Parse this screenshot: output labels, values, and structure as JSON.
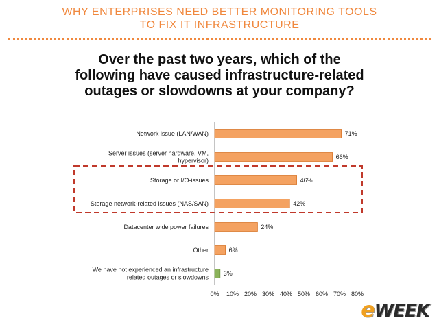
{
  "header": {
    "line1": "WHY ENTERPRISES NEED BETTER MONITORING TOOLS",
    "line2": "TO FIX IT INFRASTRUCTURE"
  },
  "question": {
    "line1": "Over the past two years, which of the",
    "line2": "following have caused infrastructure-related",
    "line3": "outages or slowdowns at your company?"
  },
  "logo": {
    "e": "e",
    "rest": "WEEK"
  },
  "colors": {
    "bar": "#f4a261",
    "bar_stroke": "#d9782d",
    "green_bar": "#8bb35a",
    "highlight": "#c0392b",
    "accent": "#f0883e"
  },
  "chart_data": {
    "type": "bar",
    "orientation": "horizontal",
    "categories": [
      [
        "Network issue (LAN/WAN)"
      ],
      [
        "Server issues (server hardware, VM,",
        "hypervisor)"
      ],
      [
        "Storage or I/O-issues"
      ],
      [
        "Storage network-related issues (NAS/SAN)"
      ],
      [
        "Datacenter wide power failures"
      ],
      [
        "Other"
      ],
      [
        "We have not experienced an infrastructure",
        "related outages or slowdowns"
      ]
    ],
    "values": [
      71,
      66,
      46,
      42,
      24,
      6,
      3
    ],
    "value_labels": [
      "71%",
      "66%",
      "46%",
      "42%",
      "24%",
      "6%",
      "3%"
    ],
    "xlim": [
      0,
      80
    ],
    "xticks": [
      "0%",
      "10%",
      "20%",
      "30%",
      "40%",
      "50%",
      "60%",
      "70%",
      "80%"
    ],
    "highlighted_categories": [
      2,
      3
    ],
    "green_categories": [
      6
    ]
  }
}
